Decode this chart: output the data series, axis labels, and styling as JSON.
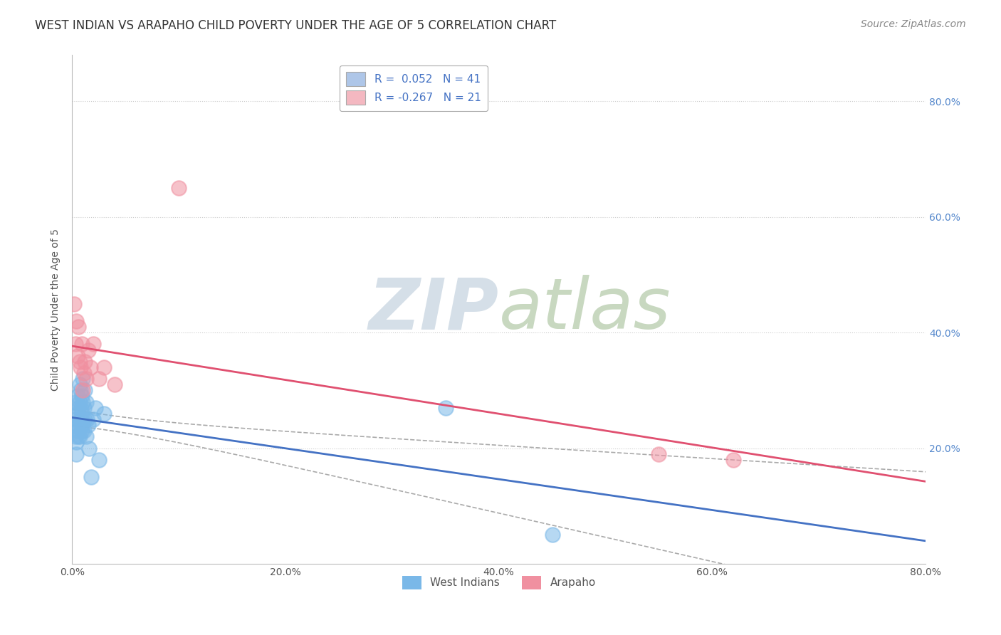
{
  "title": "WEST INDIAN VS ARAPAHO CHILD POVERTY UNDER THE AGE OF 5 CORRELATION CHART",
  "source": "Source: ZipAtlas.com",
  "ylabel": "Child Poverty Under the Age of 5",
  "xlim": [
    0,
    0.8
  ],
  "ylim": [
    0,
    0.88
  ],
  "xticks": [
    0.0,
    0.2,
    0.4,
    0.6,
    0.8
  ],
  "xticklabels": [
    "0.0%",
    "20.0%",
    "40.0%",
    "60.0%",
    "80.0%"
  ],
  "yticks": [
    0.2,
    0.4,
    0.6,
    0.8
  ],
  "yticklabels": [
    "20.0%",
    "40.0%",
    "60.0%",
    "80.0%"
  ],
  "legend_labels": [
    "R =  0.052   N = 41",
    "R = -0.267   N = 21"
  ],
  "legend_patch_colors": [
    "#aec6e8",
    "#f4b8c1"
  ],
  "west_indians_color": "#7ab8e8",
  "arapaho_color": "#f090a0",
  "west_indians_line_color": "#4472c4",
  "arapaho_line_color": "#e05070",
  "confidence_band_color": "#aaaaaa",
  "grid_color": "#cccccc",
  "watermark_color": "#d5dfe8",
  "west_indians_x": [
    0.002,
    0.003,
    0.003,
    0.004,
    0.004,
    0.004,
    0.005,
    0.005,
    0.005,
    0.006,
    0.006,
    0.006,
    0.007,
    0.007,
    0.007,
    0.007,
    0.008,
    0.008,
    0.008,
    0.009,
    0.009,
    0.009,
    0.01,
    0.01,
    0.01,
    0.011,
    0.011,
    0.012,
    0.012,
    0.013,
    0.013,
    0.014,
    0.015,
    0.016,
    0.018,
    0.02,
    0.022,
    0.025,
    0.03,
    0.35,
    0.45
  ],
  "west_indians_y": [
    0.24,
    0.22,
    0.28,
    0.25,
    0.21,
    0.19,
    0.26,
    0.23,
    0.29,
    0.27,
    0.24,
    0.22,
    0.31,
    0.28,
    0.25,
    0.22,
    0.3,
    0.27,
    0.24,
    0.29,
    0.26,
    0.23,
    0.32,
    0.28,
    0.24,
    0.27,
    0.23,
    0.3,
    0.25,
    0.28,
    0.22,
    0.25,
    0.24,
    0.2,
    0.15,
    0.25,
    0.27,
    0.18,
    0.26,
    0.27,
    0.05
  ],
  "arapaho_x": [
    0.002,
    0.003,
    0.004,
    0.005,
    0.006,
    0.007,
    0.008,
    0.009,
    0.01,
    0.011,
    0.012,
    0.013,
    0.015,
    0.017,
    0.02,
    0.025,
    0.03,
    0.04,
    0.1,
    0.55,
    0.62
  ],
  "arapaho_y": [
    0.45,
    0.38,
    0.42,
    0.36,
    0.41,
    0.35,
    0.34,
    0.38,
    0.3,
    0.33,
    0.35,
    0.32,
    0.37,
    0.34,
    0.38,
    0.32,
    0.34,
    0.31,
    0.65,
    0.19,
    0.18
  ],
  "title_fontsize": 12,
  "axis_label_fontsize": 10,
  "tick_fontsize": 10,
  "legend_fontsize": 11,
  "source_fontsize": 10
}
